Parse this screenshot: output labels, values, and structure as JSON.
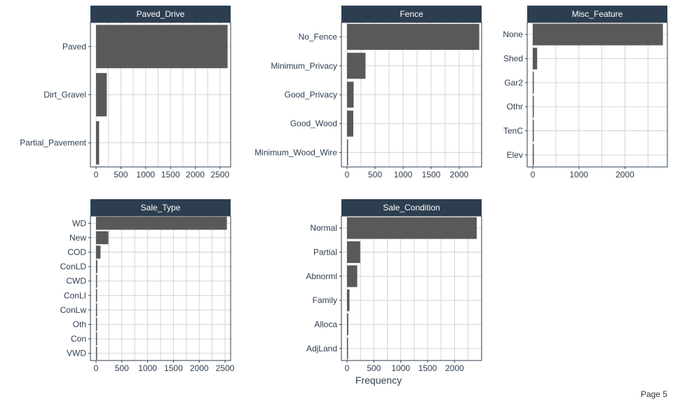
{
  "colors": {
    "strip": "#2d3e50",
    "strip_text": "#ffffff",
    "bar": "#595959",
    "grid": "#d3d3d3",
    "axis_text": "#2d3e50"
  },
  "xlabel": "Frequency",
  "page_label": "Page 5",
  "chart_data": [
    {
      "type": "bar",
      "orientation": "horizontal",
      "title": "Paved_Drive",
      "categories": [
        "Paved",
        "Dirt_Gravel",
        "Partial_Pavement"
      ],
      "values": [
        2652,
        216,
        62
      ],
      "xlim": [
        0,
        2600
      ],
      "xticks": [
        0,
        500,
        1000,
        1500,
        2000,
        2500
      ],
      "grid": true
    },
    {
      "type": "bar",
      "orientation": "horizontal",
      "title": "Fence",
      "categories": [
        "No_Fence",
        "Minimum_Privacy",
        "Good_Privacy",
        "Good_Wood",
        "Minimum_Wood_Wire"
      ],
      "values": [
        2358,
        330,
        118,
        112,
        12
      ],
      "xlim": [
        0,
        2300
      ],
      "xticks": [
        0,
        500,
        1000,
        1500,
        2000
      ],
      "grid": true
    },
    {
      "type": "bar",
      "orientation": "horizontal",
      "title": "Misc_Feature",
      "categories": [
        "None",
        "Shed",
        "Gar2",
        "Othr",
        "TenC",
        "Elev"
      ],
      "values": [
        2824,
        95,
        5,
        4,
        1,
        1
      ],
      "xlim": [
        0,
        2800
      ],
      "xticks": [
        0,
        1000,
        2000
      ],
      "grid": true
    },
    {
      "type": "bar",
      "orientation": "horizontal",
      "title": "Sale_Type",
      "categories": [
        "WD ",
        "New",
        "COD",
        "ConLD",
        "CWD",
        "ConLI",
        "ConLw",
        "Oth",
        "Con",
        "VWD"
      ],
      "values": [
        2536,
        239,
        87,
        26,
        12,
        9,
        8,
        7,
        5,
        1
      ],
      "xlim": [
        0,
        2500
      ],
      "xticks": [
        0,
        500,
        1000,
        1500,
        2000,
        2500
      ],
      "grid": true
    },
    {
      "type": "bar",
      "orientation": "horizontal",
      "title": "Sale_Condition",
      "categories": [
        "Normal",
        "Partial",
        "Abnorml",
        "Family",
        "Alloca",
        "AdjLand"
      ],
      "values": [
        2413,
        245,
        190,
        46,
        24,
        12
      ],
      "xlim": [
        0,
        2400
      ],
      "xticks": [
        0,
        500,
        1000,
        1500,
        2000
      ],
      "grid": true
    }
  ]
}
